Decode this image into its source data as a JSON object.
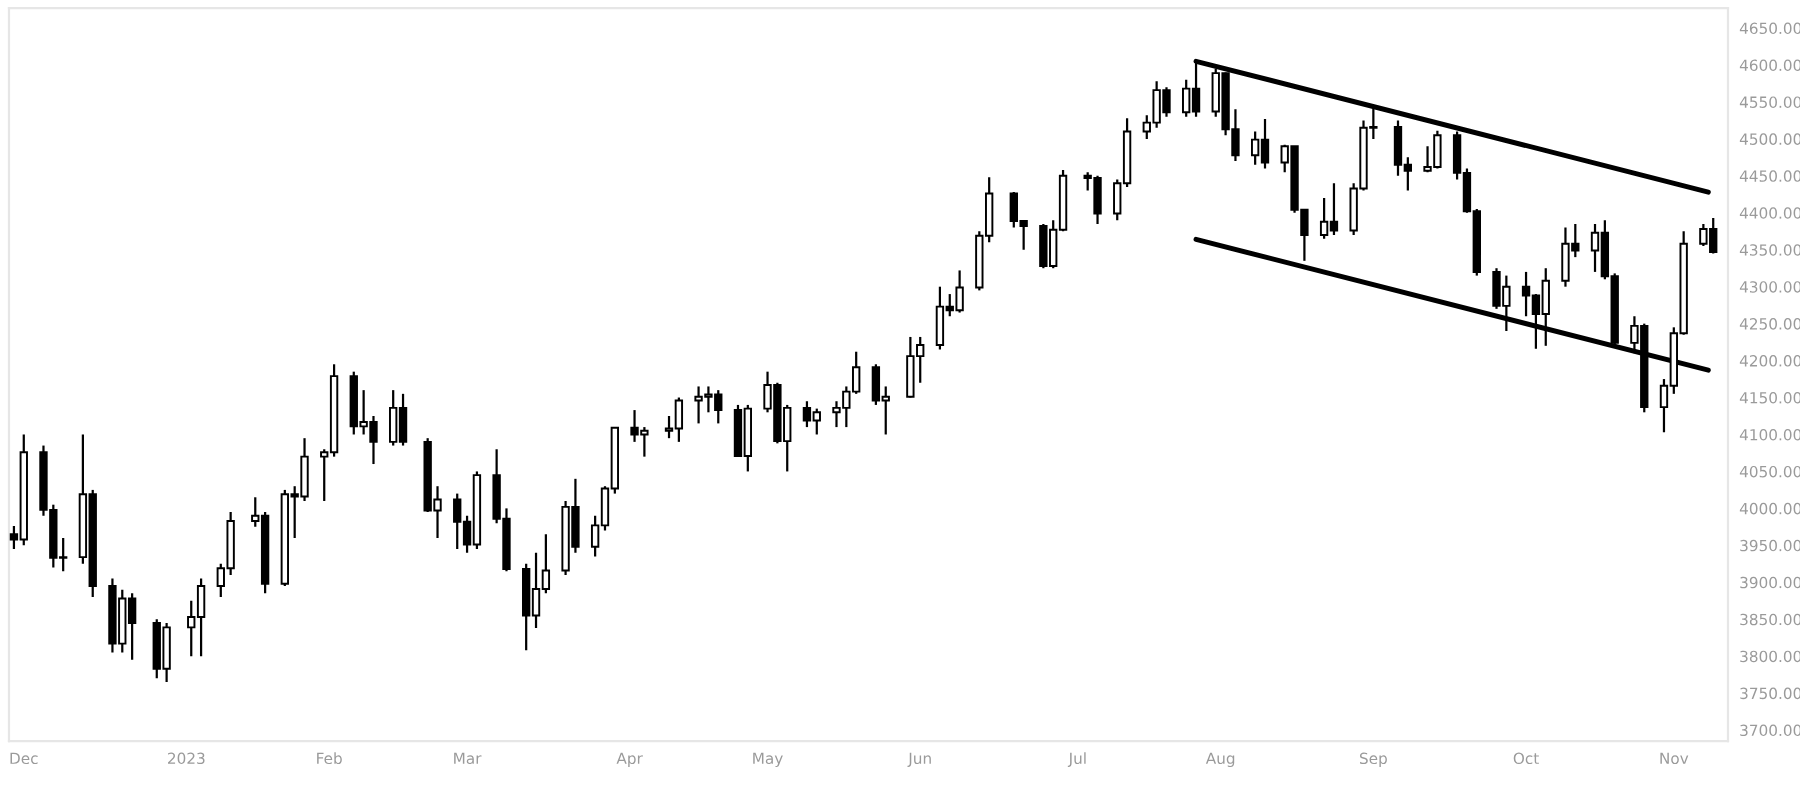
{
  "chart_data": {
    "type": "candlestick",
    "color": "#000000",
    "x": [
      "2022-11-29",
      "2022-12-01",
      "2022-12-05",
      "2022-12-07",
      "2022-12-09",
      "2022-12-13",
      "2022-12-15",
      "2022-12-19",
      "2022-12-21",
      "2022-12-23",
      "2022-12-28",
      "2022-12-30",
      "2023-01-04",
      "2023-01-06",
      "2023-01-10",
      "2023-01-12",
      "2023-01-17",
      "2023-01-19",
      "2023-01-23",
      "2023-01-25",
      "2023-01-27",
      "2023-01-31",
      "2023-02-02",
      "2023-02-06",
      "2023-02-08",
      "2023-02-10",
      "2023-02-14",
      "2023-02-16",
      "2023-02-21",
      "2023-02-23",
      "2023-02-27",
      "2023-03-01",
      "2023-03-03",
      "2023-03-07",
      "2023-03-09",
      "2023-03-13",
      "2023-03-15",
      "2023-03-17",
      "2023-03-21",
      "2023-03-23",
      "2023-03-27",
      "2023-03-29",
      "2023-03-31",
      "2023-04-04",
      "2023-04-06",
      "2023-04-11",
      "2023-04-13",
      "2023-04-17",
      "2023-04-19",
      "2023-04-21",
      "2023-04-25",
      "2023-04-27",
      "2023-05-01",
      "2023-05-03",
      "2023-05-05",
      "2023-05-09",
      "2023-05-11",
      "2023-05-15",
      "2023-05-17",
      "2023-05-19",
      "2023-05-23",
      "2023-05-25",
      "2023-05-30",
      "2023-06-01",
      "2023-06-05",
      "2023-06-07",
      "2023-06-09",
      "2023-06-13",
      "2023-06-15",
      "2023-06-20",
      "2023-06-22",
      "2023-06-26",
      "2023-06-28",
      "2023-06-30",
      "2023-07-05",
      "2023-07-07",
      "2023-07-11",
      "2023-07-13",
      "2023-07-17",
      "2023-07-19",
      "2023-07-21",
      "2023-07-25",
      "2023-07-27",
      "2023-07-31",
      "2023-08-02",
      "2023-08-04",
      "2023-08-08",
      "2023-08-10",
      "2023-08-14",
      "2023-08-16",
      "2023-08-18",
      "2023-08-22",
      "2023-08-24",
      "2023-08-28",
      "2023-08-30",
      "2023-09-01",
      "2023-09-06",
      "2023-09-08",
      "2023-09-12",
      "2023-09-14",
      "2023-09-18",
      "2023-09-20",
      "2023-09-22",
      "2023-09-26",
      "2023-09-28",
      "2023-10-02",
      "2023-10-04",
      "2023-10-06",
      "2023-10-10",
      "2023-10-12",
      "2023-10-16",
      "2023-10-18",
      "2023-10-20",
      "2023-10-24",
      "2023-10-26",
      "2023-10-30",
      "2023-11-01",
      "2023-11-03",
      "2023-11-07",
      "2023-11-09"
    ],
    "ohlc": [
      [
        3965,
        3976,
        3945,
        3958
      ],
      [
        3958,
        4100,
        3950,
        4076
      ],
      [
        4076,
        4085,
        3990,
        3998
      ],
      [
        3998,
        4005,
        3920,
        3933
      ],
      [
        3933,
        3960,
        3915,
        3934
      ],
      [
        3934,
        4100,
        3925,
        4019
      ],
      [
        4019,
        4025,
        3880,
        3895
      ],
      [
        3895,
        3905,
        3805,
        3817
      ],
      [
        3817,
        3890,
        3805,
        3878
      ],
      [
        3878,
        3885,
        3795,
        3845
      ],
      [
        3845,
        3850,
        3770,
        3783
      ],
      [
        3783,
        3845,
        3765,
        3839
      ],
      [
        3839,
        3875,
        3800,
        3853
      ],
      [
        3853,
        3905,
        3800,
        3895
      ],
      [
        3895,
        3925,
        3880,
        3919
      ],
      [
        3919,
        3995,
        3910,
        3983
      ],
      [
        3983,
        4015,
        3975,
        3990
      ],
      [
        3990,
        3995,
        3885,
        3898
      ],
      [
        3898,
        4025,
        3895,
        4019
      ],
      [
        4019,
        4030,
        3960,
        4016
      ],
      [
        4016,
        4095,
        4010,
        4070
      ],
      [
        4070,
        4080,
        4010,
        4076
      ],
      [
        4076,
        4195,
        4070,
        4179
      ],
      [
        4179,
        4185,
        4100,
        4111
      ],
      [
        4111,
        4160,
        4100,
        4117
      ],
      [
        4117,
        4125,
        4060,
        4090
      ],
      [
        4090,
        4160,
        4085,
        4136
      ],
      [
        4136,
        4155,
        4085,
        4090
      ],
      [
        4090,
        4095,
        3995,
        3997
      ],
      [
        3997,
        4030,
        3960,
        4012
      ],
      [
        4012,
        4020,
        3945,
        3982
      ],
      [
        3982,
        3990,
        3940,
        3951
      ],
      [
        3951,
        4050,
        3945,
        4045
      ],
      [
        4045,
        4080,
        3980,
        3986
      ],
      [
        3986,
        4000,
        3915,
        3918
      ],
      [
        3918,
        3925,
        3808,
        3855
      ],
      [
        3855,
        3940,
        3838,
        3891
      ],
      [
        3891,
        3965,
        3885,
        3916
      ],
      [
        3916,
        4010,
        3910,
        4002
      ],
      [
        4002,
        4040,
        3940,
        3948
      ],
      [
        3948,
        3990,
        3935,
        3977
      ],
      [
        3977,
        4030,
        3970,
        4027
      ],
      [
        4027,
        4110,
        4020,
        4109
      ],
      [
        4109,
        4133,
        4090,
        4100
      ],
      [
        4100,
        4110,
        4070,
        4105
      ],
      [
        4105,
        4125,
        4095,
        4108
      ],
      [
        4108,
        4150,
        4090,
        4146
      ],
      [
        4146,
        4165,
        4115,
        4151
      ],
      [
        4151,
        4165,
        4130,
        4154
      ],
      [
        4154,
        4160,
        4115,
        4133
      ],
      [
        4133,
        4140,
        4070,
        4071
      ],
      [
        4071,
        4140,
        4050,
        4135
      ],
      [
        4135,
        4185,
        4130,
        4167
      ],
      [
        4167,
        4170,
        4088,
        4091
      ],
      [
        4091,
        4140,
        4050,
        4136
      ],
      [
        4136,
        4145,
        4110,
        4119
      ],
      [
        4119,
        4135,
        4100,
        4130
      ],
      [
        4130,
        4145,
        4110,
        4136
      ],
      [
        4136,
        4165,
        4110,
        4158
      ],
      [
        4158,
        4212,
        4155,
        4191
      ],
      [
        4191,
        4195,
        4140,
        4146
      ],
      [
        4146,
        4165,
        4100,
        4151
      ],
      [
        4151,
        4232,
        4150,
        4206
      ],
      [
        4206,
        4232,
        4170,
        4221
      ],
      [
        4221,
        4300,
        4215,
        4273
      ],
      [
        4273,
        4290,
        4260,
        4268
      ],
      [
        4268,
        4322,
        4265,
        4299
      ],
      [
        4299,
        4375,
        4295,
        4369
      ],
      [
        4369,
        4448,
        4360,
        4426
      ],
      [
        4426,
        4428,
        4380,
        4389
      ],
      [
        4389,
        4390,
        4350,
        4382
      ],
      [
        4382,
        4385,
        4325,
        4328
      ],
      [
        4328,
        4390,
        4325,
        4377
      ],
      [
        4377,
        4458,
        4375,
        4450
      ],
      [
        4450,
        4455,
        4430,
        4447
      ],
      [
        4447,
        4450,
        4385,
        4399
      ],
      [
        4399,
        4445,
        4390,
        4440
      ],
      [
        4440,
        4528,
        4435,
        4510
      ],
      [
        4510,
        4532,
        4500,
        4522
      ],
      [
        4522,
        4578,
        4515,
        4566
      ],
      [
        4566,
        4570,
        4530,
        4536
      ],
      [
        4536,
        4580,
        4530,
        4568
      ],
      [
        4568,
        4607,
        4530,
        4537
      ],
      [
        4537,
        4595,
        4530,
        4589
      ],
      [
        4589,
        4590,
        4505,
        4513
      ],
      [
        4513,
        4540,
        4470,
        4478
      ],
      [
        4478,
        4510,
        4465,
        4499
      ],
      [
        4499,
        4527,
        4460,
        4468
      ],
      [
        4468,
        4492,
        4455,
        4490
      ],
      [
        4490,
        4490,
        4400,
        4404
      ],
      [
        4404,
        4405,
        4335,
        4370
      ],
      [
        4370,
        4420,
        4365,
        4388
      ],
      [
        4388,
        4440,
        4370,
        4376
      ],
      [
        4376,
        4440,
        4370,
        4433
      ],
      [
        4433,
        4525,
        4430,
        4515
      ],
      [
        4515,
        4541,
        4500,
        4516
      ],
      [
        4516,
        4525,
        4450,
        4465
      ],
      [
        4465,
        4475,
        4430,
        4457
      ],
      [
        4457,
        4490,
        4455,
        4462
      ],
      [
        4462,
        4511,
        4460,
        4505
      ],
      [
        4505,
        4510,
        4445,
        4454
      ],
      [
        4454,
        4460,
        4400,
        4402
      ],
      [
        4402,
        4405,
        4315,
        4320
      ],
      [
        4320,
        4325,
        4270,
        4274
      ],
      [
        4274,
        4315,
        4240,
        4300
      ],
      [
        4300,
        4320,
        4260,
        4288
      ],
      [
        4288,
        4290,
        4216,
        4263
      ],
      [
        4263,
        4325,
        4220,
        4308
      ],
      [
        4308,
        4380,
        4300,
        4358
      ],
      [
        4358,
        4385,
        4340,
        4349
      ],
      [
        4349,
        4385,
        4320,
        4373
      ],
      [
        4373,
        4390,
        4310,
        4314
      ],
      [
        4314,
        4318,
        4220,
        4224
      ],
      [
        4224,
        4260,
        4210,
        4247
      ],
      [
        4247,
        4250,
        4130,
        4137
      ],
      [
        4137,
        4175,
        4103,
        4166
      ],
      [
        4166,
        4245,
        4155,
        4237
      ],
      [
        4237,
        4375,
        4235,
        4358
      ],
      [
        4358,
        4385,
        4355,
        4378
      ],
      [
        4378,
        4393,
        4345,
        4347
      ]
    ],
    "series": [
      {
        "type": "line",
        "color": "#000000",
        "x": [
          "2023-07-27",
          "2023-11-08"
        ],
        "values": [
          4605,
          4428
        ]
      },
      {
        "type": "line",
        "color": "#000000",
        "x": [
          "2023-07-27",
          "2023-11-08"
        ],
        "values": [
          4364,
          4187
        ]
      }
    ],
    "xlim": [
      "2022-11-28",
      "2023-11-12"
    ],
    "xticks": [
      {
        "value": "2022-12-01",
        "label": "Dec"
      },
      {
        "value": "2023-01-03",
        "label": "2023"
      },
      {
        "value": "2023-02-01",
        "label": "Feb"
      },
      {
        "value": "2023-03-01",
        "label": "Mar"
      },
      {
        "value": "2023-04-03",
        "label": "Apr"
      },
      {
        "value": "2023-05-01",
        "label": "May"
      },
      {
        "value": "2023-06-01",
        "label": "Jun"
      },
      {
        "value": "2023-07-03",
        "label": "Jul"
      },
      {
        "value": "2023-08-01",
        "label": "Aug"
      },
      {
        "value": "2023-09-01",
        "label": "Sep"
      },
      {
        "value": "2023-10-02",
        "label": "Oct"
      },
      {
        "value": "2023-11-01",
        "label": "Nov"
      }
    ],
    "ylim": [
      3685,
      4677
    ],
    "yticks": [
      {
        "value": 3700,
        "label": "3700.00"
      },
      {
        "value": 3750,
        "label": "3750.00"
      },
      {
        "value": 3800,
        "label": "3800.00"
      },
      {
        "value": 3850,
        "label": "3850.00"
      },
      {
        "value": 3900,
        "label": "3900.00"
      },
      {
        "value": 3950,
        "label": "3950.00"
      },
      {
        "value": 4000,
        "label": "4000.00"
      },
      {
        "value": 4050,
        "label": "4050.00"
      },
      {
        "value": 4100,
        "label": "4100.00"
      },
      {
        "value": 4150,
        "label": "4150.00"
      },
      {
        "value": 4200,
        "label": "4200.00"
      },
      {
        "value": 4250,
        "label": "4250.00"
      },
      {
        "value": 4300,
        "label": "4300.00"
      },
      {
        "value": 4350,
        "label": "4350.00"
      },
      {
        "value": 4400,
        "label": "4400.00"
      },
      {
        "value": 4450,
        "label": "4450.00"
      },
      {
        "value": 4500,
        "label": "4500.00"
      },
      {
        "value": 4550,
        "label": "4550.00"
      },
      {
        "value": 4600,
        "label": "4600.00"
      },
      {
        "value": 4650,
        "label": "4650.00"
      }
    ],
    "grid": false
  }
}
